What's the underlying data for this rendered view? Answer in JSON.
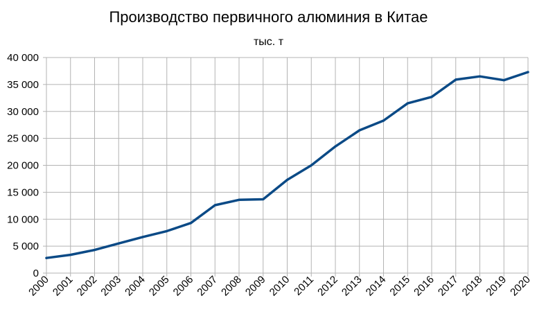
{
  "chart_data": {
    "type": "line",
    "title": "Производство первичного алюминия в Китае",
    "subtitle": "тыс. т",
    "xlabel": "",
    "ylabel": "",
    "ylim": [
      0,
      40000
    ],
    "yticks": [
      0,
      5000,
      10000,
      15000,
      20000,
      25000,
      30000,
      35000,
      40000
    ],
    "ytick_labels": [
      "0",
      "5 000",
      "10 000",
      "15 000",
      "20 000",
      "25 000",
      "30 000",
      "35 000",
      "40 000"
    ],
    "categories": [
      "2000",
      "2001",
      "2002",
      "2003",
      "2004",
      "2005",
      "2006",
      "2007",
      "2008",
      "2009",
      "2010",
      "2011",
      "2012",
      "2013",
      "2014",
      "2015",
      "2016",
      "2017",
      "2018",
      "2019",
      "2020"
    ],
    "series": [
      {
        "color": "#0b4a86",
        "values": [
          2800,
          3400,
          4300,
          5500,
          6700,
          7800,
          9300,
          12600,
          13600,
          13700,
          17300,
          20000,
          23500,
          26500,
          28300,
          31500,
          32700,
          35900,
          36500,
          35800,
          37300
        ]
      }
    ],
    "grid": true,
    "legend": "none"
  }
}
